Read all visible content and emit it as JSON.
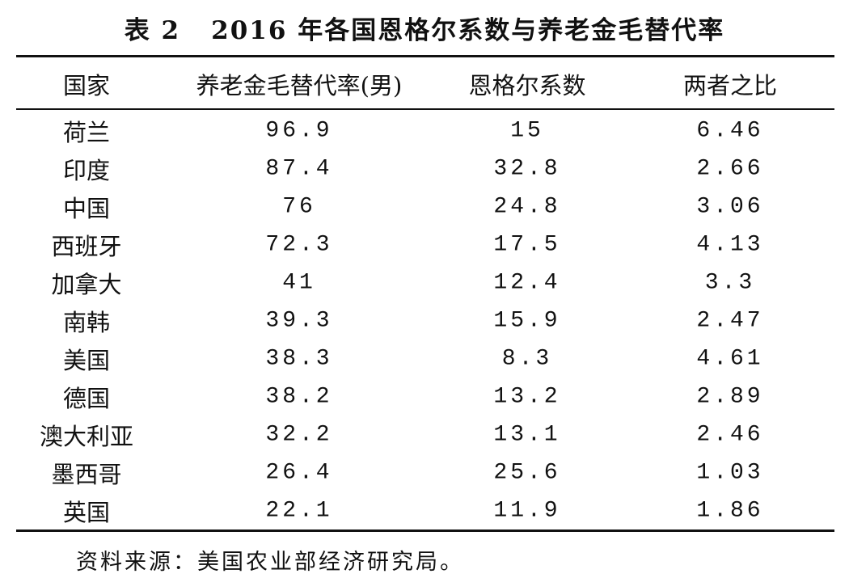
{
  "table": {
    "label": "表 2",
    "title": "2016 年各国恩格尔系数与养老金毛替代率",
    "header": [
      "国家",
      "养老金毛替代率(男)",
      "恩格尔系数",
      "两者之比"
    ],
    "rows": [
      [
        "荷兰",
        "96.9",
        "15",
        "6.46"
      ],
      [
        "印度",
        "87.4",
        "32.8",
        "2.66"
      ],
      [
        "中国",
        "76",
        "24.8",
        "3.06"
      ],
      [
        "西班牙",
        "72.3",
        "17.5",
        "4.13"
      ],
      [
        "加拿大",
        "41",
        "12.4",
        "3.3"
      ],
      [
        "南韩",
        "39.3",
        "15.9",
        "2.47"
      ],
      [
        "美国",
        "38.3",
        "8.3",
        "4.61"
      ],
      [
        "德国",
        "38.2",
        "13.2",
        "2.89"
      ],
      [
        "澳大利亚",
        "32.2",
        "13.1",
        "2.46"
      ],
      [
        "墨西哥",
        "26.4",
        "25.6",
        "1.03"
      ],
      [
        "英国",
        "22.1",
        "11.9",
        "1.86"
      ]
    ],
    "note": "资料来源：美国农业部经济研究局。"
  }
}
